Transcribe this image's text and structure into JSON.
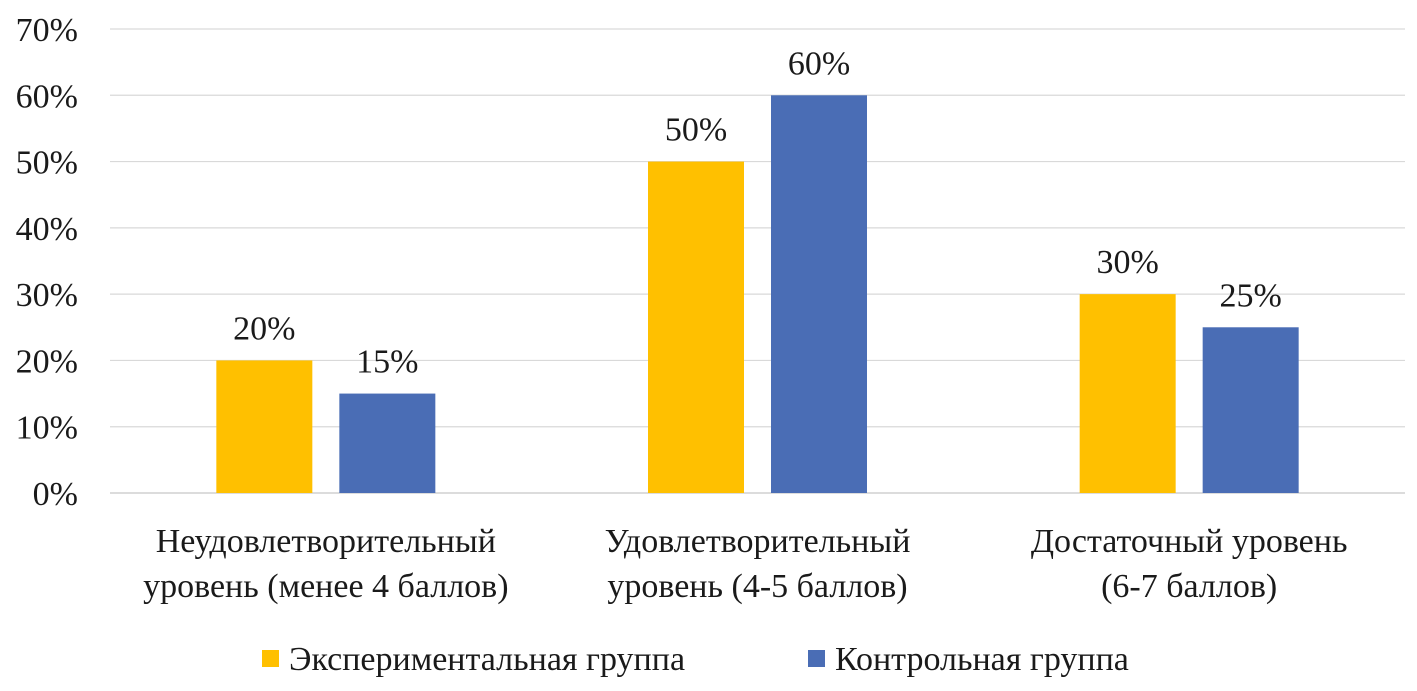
{
  "chart_data": {
    "type": "bar",
    "categories": [
      [
        "Неудовлетворительный",
        "уровень (менее 4 баллов)"
      ],
      [
        "Удовлетворительный",
        "уровень (4-5  баллов)"
      ],
      [
        "Достаточный уровень",
        "(6-7 баллов)"
      ]
    ],
    "series": [
      {
        "name": "Экспериментальная группа",
        "color": "#FFC000",
        "values": [
          20,
          50,
          30
        ],
        "labels": [
          "20%",
          "50%",
          "30%"
        ]
      },
      {
        "name": "Контрольная группа",
        "color": "#4A6DB5",
        "values": [
          15,
          60,
          25
        ],
        "labels": [
          "15%",
          "60%",
          "25%"
        ]
      }
    ],
    "ylim": [
      0,
      70
    ],
    "yticks": [
      0,
      10,
      20,
      30,
      40,
      50,
      60,
      70
    ],
    "ytick_labels": [
      "0%",
      "10%",
      "20%",
      "30%",
      "40%",
      "50%",
      "60%",
      "70%"
    ],
    "grid": true,
    "legend_position": "bottom"
  }
}
